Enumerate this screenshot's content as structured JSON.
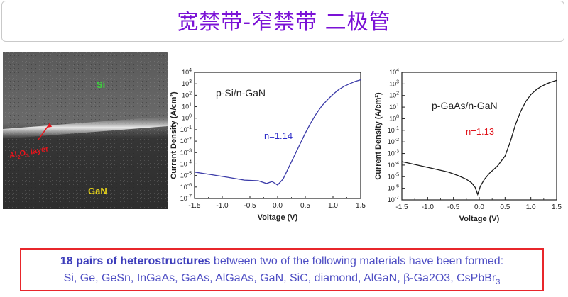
{
  "title": "宽禁带-窄禁带 二极管",
  "tem_image": {
    "labels": {
      "si": "Si",
      "interface_main": "Al",
      "sub2": "2",
      "o": "O",
      "sub3": "3",
      "layer": " layer",
      "gan": "GaN"
    },
    "colors": {
      "si": "#3cd33c",
      "interface": "#e8141b",
      "gan": "#e4d11a"
    }
  },
  "chart_data": [
    {
      "type": "line",
      "annotation": "p-Si/n-GaN",
      "ideality": "n=1.14",
      "ideality_color": "#2b2bc8",
      "line_color": "#3a3aa8",
      "xlabel": "Voltage (V)",
      "ylabel": "Current Density (A/cm²)",
      "xlim": [
        -1.5,
        1.5
      ],
      "ylim_log10": [
        -7,
        4
      ],
      "xticks": [
        "-1.5",
        "-1.0",
        "-0.5",
        "0.0",
        "0.5",
        "1.0",
        "1.5"
      ],
      "yticks": [
        "10-7",
        "10-6",
        "10-5",
        "10-4",
        "10-3",
        "10-2",
        "10-1",
        "100",
        "101",
        "102",
        "103",
        "104"
      ],
      "yscale": "log",
      "series": [
        {
          "x": [
            -1.5,
            -1.2,
            -0.9,
            -0.6,
            -0.35,
            -0.2,
            -0.1,
            0.0,
            0.1,
            0.2,
            0.3,
            0.4,
            0.5,
            0.6,
            0.7,
            0.8,
            0.9,
            1.0,
            1.1,
            1.2,
            1.3,
            1.4,
            1.5
          ],
          "y": [
            2e-05,
            1.2e-05,
            7e-06,
            4e-06,
            3.5e-06,
            2e-06,
            3e-06,
            1.5e-06,
            5e-06,
            5e-05,
            0.0005,
            0.005,
            0.05,
            0.4,
            2.5,
            12,
            40,
            120,
            300,
            600,
            1000,
            1600,
            2200
          ]
        }
      ]
    },
    {
      "type": "line",
      "annotation": "p-GaAs/n-GaN",
      "ideality": "n=1.13",
      "ideality_color": "#e0141b",
      "line_color": "#1a1a1a",
      "xlabel": "Voltage (V)",
      "ylabel": "Current Density (A/cm²)",
      "xlim": [
        -1.5,
        1.5
      ],
      "ylim_log10": [
        -7,
        4
      ],
      "xticks": [
        "-1.5",
        "-1.0",
        "-0.5",
        "0.0",
        "0.5",
        "1.0",
        "1.5"
      ],
      "yticks": [
        "10-7",
        "10-6",
        "10-5",
        "10-4",
        "10-3",
        "10-2",
        "10-1",
        "100",
        "101",
        "102",
        "103",
        "104"
      ],
      "yscale": "log",
      "series": [
        {
          "x": [
            -1.5,
            -1.2,
            -0.9,
            -0.6,
            -0.4,
            -0.25,
            -0.15,
            -0.08,
            -0.03,
            0.02,
            0.1,
            0.2,
            0.35,
            0.5,
            0.6,
            0.7,
            0.8,
            0.9,
            1.0,
            1.1,
            1.2,
            1.3,
            1.4,
            1.5
          ],
          "y": [
            0.0002,
            0.0001,
            5e-05,
            2.5e-05,
            1.2e-05,
            6e-06,
            3e-06,
            1.2e-06,
            3e-07,
            1.5e-06,
            6e-06,
            2e-05,
            8e-05,
            0.0006,
            0.01,
            0.3,
            4,
            30,
            120,
            300,
            600,
            1000,
            1500,
            2000
          ]
        }
      ]
    }
  ],
  "footer": {
    "bold_text": "18 pairs of heterostructures",
    "rest_text": " between two of the following materials have been formed:",
    "line2_a": "Si, Ge, GeSn, InGaAs, GaAs, AlGaAs, GaN, SiC, diamond, AlGaN, ",
    "line2_beta": "β",
    "line2_b": "-Ga2O3, CsPbBr",
    "line2_sub": "3"
  }
}
